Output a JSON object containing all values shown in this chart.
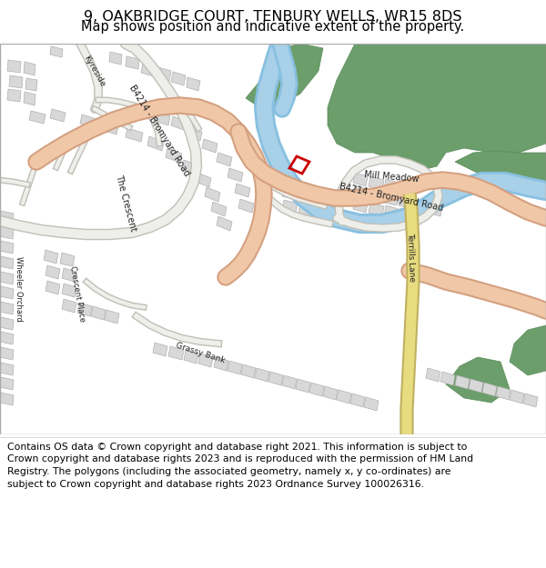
{
  "title_line1": "9, OAKBRIDGE COURT, TENBURY WELLS, WR15 8DS",
  "title_line2": "Map shows position and indicative extent of the property.",
  "footer": "Contains OS data © Crown copyright and database right 2021. This information is subject to Crown copyright and database rights 2023 and is reproduced with the permission of HM Land Registry. The polygons (including the associated geometry, namely x, y co-ordinates) are subject to Crown copyright and database rights 2023 Ordnance Survey 100026316.",
  "map_bg": "#f5f5f5",
  "road_main_color": "#f0c8a8",
  "road_main_edge": "#d4a080",
  "road_minor_color": "#e8e8e0",
  "road_minor_edge": "#c8c8c0",
  "road_tiny_color": "#f0f0e8",
  "river_color": "#a8d0e8",
  "river_edge": "#88b8d8",
  "green_color": "#6b9e6b",
  "green_edge": "#5a8a5a",
  "building_color": "#d8d8d8",
  "building_edge": "#b0b0b0",
  "property_color": "#cc0000",
  "text_color": "#222222",
  "title_fontsize": 11.5,
  "subtitle_fontsize": 10.5,
  "footer_fontsize": 7.8,
  "map_border_color": "#aaaaaa",
  "terrills_color": "#e8dc80",
  "terrills_edge": "#c0b060"
}
